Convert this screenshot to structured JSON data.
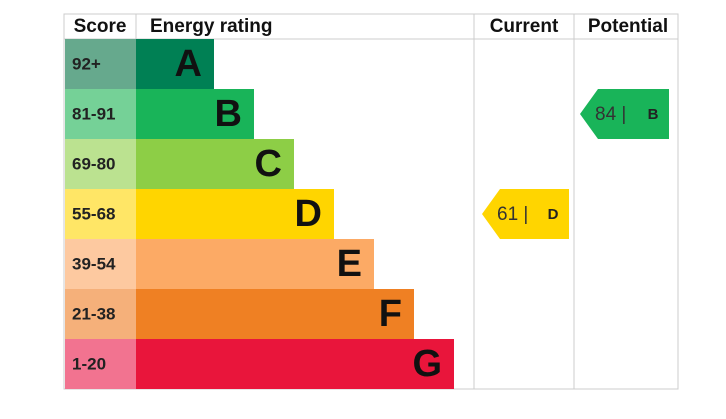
{
  "chart_data": {
    "type": "epc",
    "headers": {
      "score": "Score",
      "rating": "Energy rating",
      "current": "Current",
      "potential": "Potential"
    },
    "bands": [
      {
        "score": "92+",
        "letter": "A",
        "color": "#008054",
        "score_color": "#66a98d"
      },
      {
        "score": "81-91",
        "letter": "B",
        "color": "#19b459",
        "score_color": "#75d197"
      },
      {
        "score": "69-80",
        "letter": "C",
        "color": "#8dce46",
        "score_color": "#bbe290"
      },
      {
        "score": "55-68",
        "letter": "D",
        "color": "#ffd500",
        "score_color": "#ffe666"
      },
      {
        "score": "39-54",
        "letter": "E",
        "color": "#fcaa65",
        "score_color": "#fdc9a0"
      },
      {
        "score": "21-38",
        "letter": "F",
        "color": "#ef8023",
        "score_color": "#f5b07a"
      },
      {
        "score": "1-20",
        "letter": "G",
        "color": "#e9153b",
        "score_color": "#f27390"
      }
    ],
    "current": {
      "value": 61,
      "label": "61 |",
      "rating": "D"
    },
    "potential": {
      "value": 84,
      "label": "84 |",
      "rating": "B"
    }
  }
}
